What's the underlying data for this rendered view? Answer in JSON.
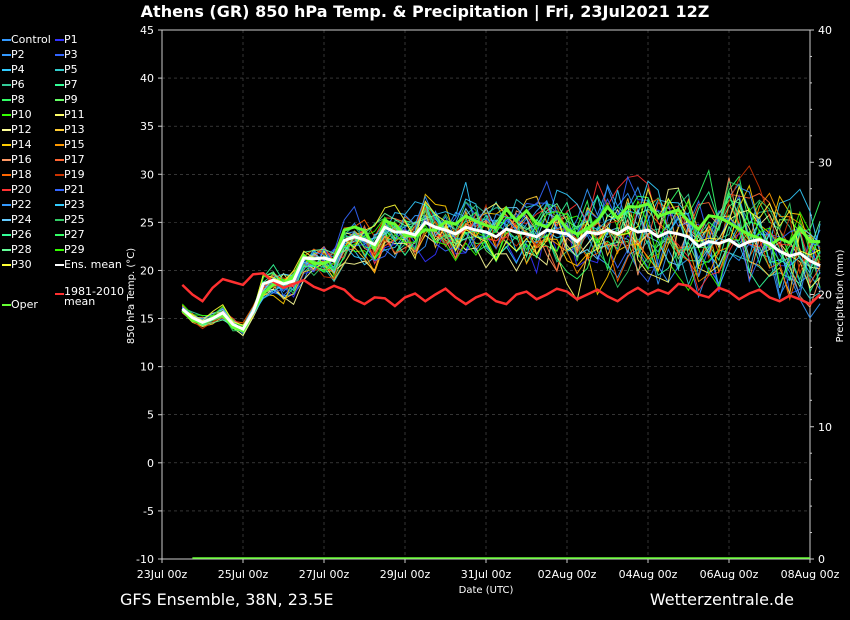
{
  "title": "Athens  (GR)  850 hPa Temp. & Precipitation | Fri, 23Jul2021 12Z",
  "footer": {
    "left": "GFS Ensemble, 38N, 23.5E",
    "right": "Wetterzentrale.de"
  },
  "colors": {
    "background": "#000000",
    "grid": "#555555",
    "ens_mean": "#ffffff",
    "climate": "#ff3030",
    "oper": "#66ff33",
    "control": "#3366ff"
  },
  "chart_data": {
    "type": "line",
    "title": "Athens  (GR)  850 hPa Temp. & Precipitation | Fri, 23Jul2021 12Z",
    "xlabel": "Date (UTC)",
    "ylabel": "850 hPa Temp. (°C)",
    "y2label": "Precipitation (mm)",
    "ylim": [
      -10,
      45
    ],
    "y2lim": [
      0,
      40
    ],
    "xlim_days": [
      0,
      16
    ],
    "yticks": [
      -10,
      -5,
      0,
      5,
      10,
      15,
      20,
      25,
      30,
      35,
      40,
      45
    ],
    "y2ticks": [
      0,
      10,
      20,
      30,
      40
    ],
    "xticks": [
      "23Jul 00z",
      "25Jul 00z",
      "27Jul 00z",
      "29Jul 00z",
      "31Jul 00z",
      "02Aug 00z",
      "04Aug 00z",
      "06Aug 00z",
      "08Aug 00z"
    ],
    "grid": true,
    "legend_position": "left, outside plot",
    "x_step_hours": 6,
    "x_start": "23Jul 12z",
    "ens_mean": [
      16.0,
      15.1,
      14.6,
      15.0,
      15.6,
      14.4,
      13.9,
      15.7,
      18.6,
      19.0,
      18.6,
      18.9,
      21.3,
      21.2,
      21.3,
      21.0,
      23.1,
      23.5,
      23.2,
      22.7,
      24.5,
      24.0,
      24.0,
      23.7,
      25.0,
      24.5,
      24.2,
      23.8,
      24.5,
      24.2,
      24.0,
      23.5,
      24.3,
      24.0,
      23.8,
      23.5,
      24.2,
      24.0,
      23.8,
      23.0,
      24.0,
      23.8,
      24.2,
      23.8,
      24.5,
      24.0,
      24.2,
      23.5,
      24.0,
      23.8,
      23.5,
      22.5,
      23.0,
      22.8,
      23.2,
      22.5,
      23.0,
      23.2,
      22.8,
      22.0,
      21.5,
      21.8,
      21.0,
      20.5
    ],
    "climate_mean": [
      18.5,
      17.5,
      16.8,
      18.2,
      19.1,
      18.8,
      18.5,
      19.6,
      19.7,
      18.8,
      18.2,
      18.6,
      19.0,
      18.3,
      17.9,
      18.4,
      18.0,
      17.0,
      16.5,
      17.2,
      17.1,
      16.3,
      17.2,
      17.6,
      16.8,
      17.5,
      18.1,
      17.2,
      16.5,
      17.2,
      17.6,
      16.8,
      16.5,
      17.5,
      17.8,
      17.0,
      17.5,
      18.1,
      17.8,
      17.0,
      17.5,
      18.0,
      17.3,
      16.8,
      17.6,
      18.2,
      17.5,
      18.0,
      17.6,
      18.6,
      18.4,
      17.5,
      17.2,
      18.2,
      17.8,
      17.0,
      17.6,
      18.0,
      17.2,
      16.8,
      17.4,
      17.0,
      16.5,
      17.5
    ],
    "precipitation_note": "ensemble precipitation near 0 mm throughout",
    "legend": [
      {
        "label": "Control",
        "color": "#3399ff"
      },
      {
        "label": "P1",
        "color": "#3333ff"
      },
      {
        "label": "P2",
        "color": "#3399ff"
      },
      {
        "label": "P3",
        "color": "#3366ff"
      },
      {
        "label": "P4",
        "color": "#33ccff"
      },
      {
        "label": "P5",
        "color": "#33cccc"
      },
      {
        "label": "P6",
        "color": "#33cc99"
      },
      {
        "label": "P7",
        "color": "#33ff99"
      },
      {
        "label": "P8",
        "color": "#33ff66"
      },
      {
        "label": "P9",
        "color": "#66ff66"
      },
      {
        "label": "P10",
        "color": "#33ff00"
      },
      {
        "label": "P11",
        "color": "#ffff66"
      },
      {
        "label": "P12",
        "color": "#ffff99"
      },
      {
        "label": "P13",
        "color": "#ffcc33"
      },
      {
        "label": "P14",
        "color": "#ffcc00"
      },
      {
        "label": "P15",
        "color": "#ff9900"
      },
      {
        "label": "P16",
        "color": "#ff9966"
      },
      {
        "label": "P17",
        "color": "#ff6633"
      },
      {
        "label": "P18",
        "color": "#ff6600"
      },
      {
        "label": "P19",
        "color": "#cc3300"
      },
      {
        "label": "P20",
        "color": "#ff3333"
      },
      {
        "label": "P21",
        "color": "#3366ff"
      },
      {
        "label": "P22",
        "color": "#3399ff"
      },
      {
        "label": "P23",
        "color": "#33ccff"
      },
      {
        "label": "P24",
        "color": "#66ccff"
      },
      {
        "label": "P25",
        "color": "#33cc66"
      },
      {
        "label": "P26",
        "color": "#33ff99"
      },
      {
        "label": "P27",
        "color": "#33ff66"
      },
      {
        "label": "P28",
        "color": "#66ff99"
      },
      {
        "label": "P29",
        "color": "#33ff00"
      },
      {
        "label": "P30",
        "color": "#ffff33"
      },
      {
        "label": "Ens. mean",
        "color": "#ffffff"
      },
      {
        "label": "Oper",
        "color": "#66ff33"
      },
      {
        "label": "1981-2010\nmean",
        "color": "#ff3030"
      }
    ]
  }
}
